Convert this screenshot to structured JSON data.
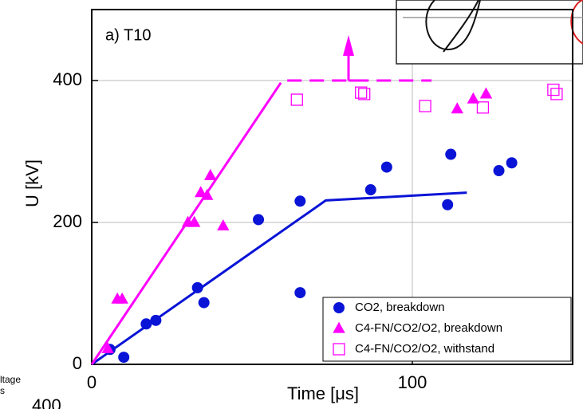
{
  "chart_data": {
    "type": "scatter",
    "panel_label": "a) T10",
    "ylabel": "U [kV]",
    "xlabel": "Time [μs]",
    "xlim": [
      0,
      150
    ],
    "ylim": [
      0,
      500
    ],
    "xticks": [
      0,
      100
    ],
    "yticks": [
      0,
      200,
      400
    ],
    "grid": true,
    "legend": "lower right",
    "series": [
      {
        "name": "CO2, breakdown",
        "color": "#0a14d6",
        "marker": "circle",
        "x": [
          5.7,
          10,
          17,
          20,
          33,
          35,
          52,
          65,
          65,
          87,
          92,
          112,
          111,
          127,
          131
        ],
        "values": [
          21,
          10,
          57,
          62,
          108,
          87,
          204,
          230,
          101,
          246,
          278,
          296,
          225,
          273,
          284
        ]
      },
      {
        "name": "C4-FN/CO2/O2, breakdown",
        "color": "#ff00ff",
        "marker": "triangle",
        "x": [
          5,
          8,
          9.5,
          30,
          32,
          34,
          36,
          37,
          41,
          114,
          119,
          123
        ],
        "values": [
          22,
          92,
          92,
          200,
          200,
          242,
          238,
          266,
          195,
          360,
          374,
          381
        ]
      },
      {
        "name": "C4-FN/CO2/O2, withstand",
        "color": "#ff00ff",
        "marker": "square",
        "x": [
          64,
          84,
          85,
          104,
          122,
          144,
          145
        ],
        "values": [
          373,
          383,
          381,
          364,
          362,
          387,
          381
        ]
      }
    ],
    "lines": [
      {
        "color": "#0a14d6",
        "dashed": false,
        "x": [
          0,
          73,
          117
        ],
        "values": [
          0,
          231,
          242
        ]
      },
      {
        "color": "#ff00ff",
        "dashed": false,
        "x": [
          0,
          59
        ],
        "values": [
          0,
          397
        ]
      },
      {
        "color": "#ff00ff",
        "dashed": true,
        "x": [
          61,
          106
        ],
        "values": [
          400,
          400
        ]
      }
    ]
  },
  "fragments": [
    "ltage",
    "s",
    "400"
  ]
}
